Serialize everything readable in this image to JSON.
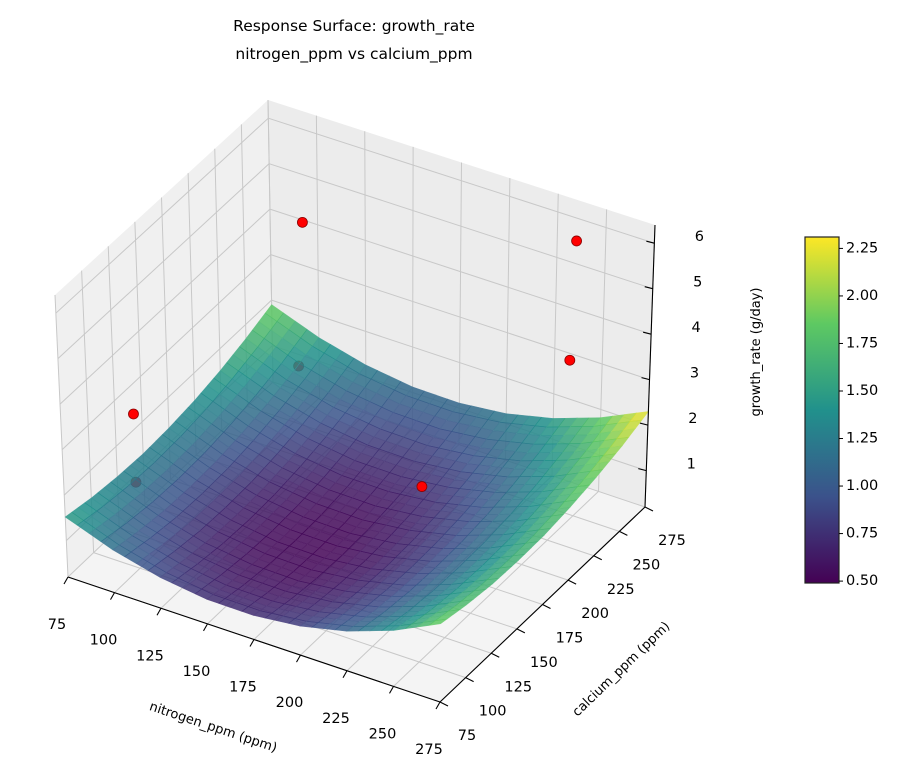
{
  "chart_data": {
    "type": "surface3d",
    "title": "Response Surface: growth_rate",
    "subtitle": "nitrogen_ppm vs calcium_ppm",
    "xlabel": "nitrogen_ppm (ppm)",
    "ylabel": "calcium_ppm (ppm)",
    "zlabel": "growth_rate (g/day)",
    "xlim": [
      75,
      275
    ],
    "ylim": [
      75,
      275
    ],
    "zlim": [
      0.2,
      6.4
    ],
    "x_ticks": [
      75,
      100,
      125,
      150,
      175,
      200,
      225,
      250,
      275
    ],
    "y_ticks": [
      75,
      100,
      125,
      150,
      175,
      200,
      225,
      250,
      275
    ],
    "z_ticks": [
      1,
      2,
      3,
      4,
      5,
      6
    ],
    "grid": true,
    "colormap": "viridis",
    "surface_alpha": 0.85,
    "surface": {
      "x": [
        75,
        100,
        125,
        150,
        175,
        200,
        225,
        250,
        275
      ],
      "y": [
        75,
        100,
        125,
        150,
        175,
        200,
        225,
        250,
        275
      ],
      "z": [
        [
          1.52,
          1.4,
          1.33,
          1.3,
          1.33,
          1.4,
          1.52,
          1.69,
          1.9
        ],
        [
          1.14,
          1.02,
          0.94,
          0.92,
          0.94,
          1.02,
          1.14,
          1.3,
          1.52
        ],
        [
          0.88,
          0.76,
          0.68,
          0.66,
          0.68,
          0.76,
          0.88,
          1.04,
          1.26
        ],
        [
          0.74,
          0.62,
          0.55,
          0.52,
          0.55,
          0.62,
          0.74,
          0.91,
          1.12
        ],
        [
          0.73,
          0.61,
          0.53,
          0.51,
          0.53,
          0.61,
          0.73,
          0.89,
          1.11
        ],
        [
          0.84,
          0.72,
          0.65,
          0.62,
          0.65,
          0.72,
          0.84,
          1.01,
          1.22
        ],
        [
          1.07,
          0.95,
          0.88,
          0.86,
          0.88,
          0.95,
          1.07,
          1.24,
          1.46
        ],
        [
          1.43,
          1.31,
          1.24,
          1.22,
          1.24,
          1.31,
          1.43,
          1.6,
          1.82
        ],
        [
          1.92,
          1.8,
          1.72,
          1.7,
          1.72,
          1.8,
          1.92,
          2.08,
          2.3
        ]
      ]
    },
    "points": [
      {
        "x": 120,
        "y": 225,
        "z": 5.4
      },
      {
        "x": 235,
        "y": 275,
        "z": 5.5
      },
      {
        "x": 233,
        "y": 275,
        "z": 2.85
      },
      {
        "x": 85,
        "y": 125,
        "z": 2.85
      },
      {
        "x": 85,
        "y": 125,
        "z": 1.35
      },
      {
        "x": 210,
        "y": 175,
        "z": 1.9
      },
      {
        "x": 117,
        "y": 225,
        "z": 2.2
      }
    ],
    "point_color": "#ff0000",
    "colorbar": {
      "range": [
        0.49,
        2.31
      ],
      "ticks": [
        "0.50",
        "0.75",
        "1.00",
        "1.25",
        "1.50",
        "1.75",
        "2.00",
        "2.25"
      ]
    }
  }
}
